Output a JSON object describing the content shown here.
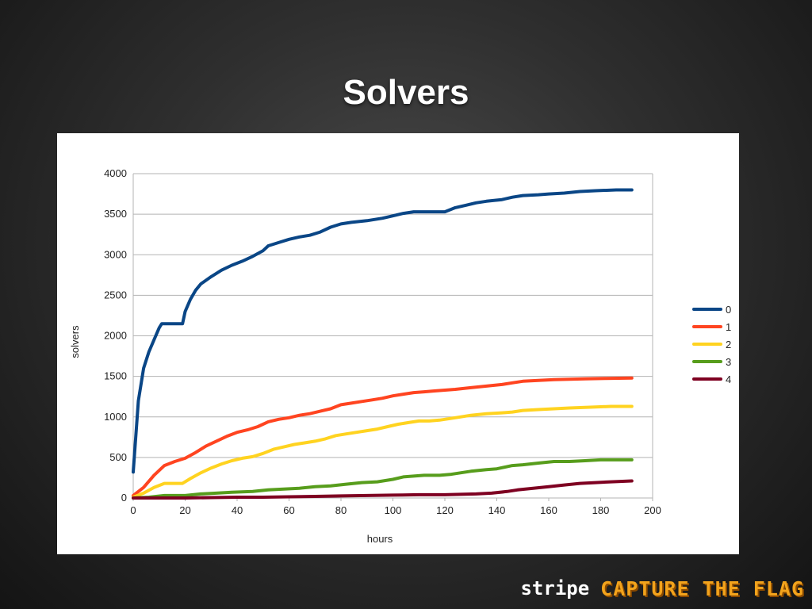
{
  "slide": {
    "title": "Solvers"
  },
  "footer": {
    "brand": "stripe",
    "event": "CAPTURE THE FLAG"
  },
  "chart_data": {
    "type": "line",
    "title": "",
    "xlabel": "hours",
    "ylabel": "solvers",
    "xlim": [
      0,
      200
    ],
    "ylim": [
      0,
      4000
    ],
    "x_ticks": [
      0,
      20,
      40,
      60,
      80,
      100,
      120,
      140,
      160,
      180,
      200
    ],
    "y_ticks": [
      0,
      500,
      1000,
      1500,
      2000,
      2500,
      3000,
      3500,
      4000
    ],
    "grid": "horizontal",
    "legend": "right",
    "series": [
      {
        "name": "0",
        "color": "#0a4686",
        "points": [
          [
            0,
            320
          ],
          [
            2,
            1200
          ],
          [
            4,
            1600
          ],
          [
            6,
            1800
          ],
          [
            8,
            1950
          ],
          [
            10,
            2100
          ],
          [
            11,
            2150
          ],
          [
            14,
            2150
          ],
          [
            16,
            2150
          ],
          [
            19,
            2150
          ],
          [
            20,
            2300
          ],
          [
            22,
            2450
          ],
          [
            24,
            2560
          ],
          [
            26,
            2640
          ],
          [
            30,
            2730
          ],
          [
            34,
            2810
          ],
          [
            38,
            2870
          ],
          [
            42,
            2920
          ],
          [
            46,
            2980
          ],
          [
            50,
            3050
          ],
          [
            52,
            3110
          ],
          [
            56,
            3150
          ],
          [
            60,
            3190
          ],
          [
            64,
            3220
          ],
          [
            68,
            3240
          ],
          [
            72,
            3280
          ],
          [
            76,
            3340
          ],
          [
            80,
            3380
          ],
          [
            84,
            3400
          ],
          [
            90,
            3420
          ],
          [
            96,
            3450
          ],
          [
            100,
            3480
          ],
          [
            104,
            3510
          ],
          [
            108,
            3530
          ],
          [
            112,
            3530
          ],
          [
            116,
            3530
          ],
          [
            118,
            3530
          ],
          [
            120,
            3530
          ],
          [
            124,
            3580
          ],
          [
            128,
            3610
          ],
          [
            132,
            3640
          ],
          [
            136,
            3660
          ],
          [
            142,
            3680
          ],
          [
            146,
            3710
          ],
          [
            150,
            3730
          ],
          [
            156,
            3740
          ],
          [
            160,
            3750
          ],
          [
            166,
            3760
          ],
          [
            172,
            3780
          ],
          [
            178,
            3790
          ],
          [
            186,
            3800
          ],
          [
            192,
            3800
          ]
        ]
      },
      {
        "name": "1",
        "color": "#ff4420",
        "points": [
          [
            0,
            30
          ],
          [
            4,
            130
          ],
          [
            8,
            280
          ],
          [
            12,
            400
          ],
          [
            16,
            450
          ],
          [
            20,
            490
          ],
          [
            24,
            560
          ],
          [
            28,
            640
          ],
          [
            32,
            700
          ],
          [
            36,
            760
          ],
          [
            40,
            810
          ],
          [
            44,
            840
          ],
          [
            48,
            880
          ],
          [
            52,
            940
          ],
          [
            56,
            970
          ],
          [
            60,
            990
          ],
          [
            64,
            1020
          ],
          [
            68,
            1040
          ],
          [
            72,
            1070
          ],
          [
            76,
            1100
          ],
          [
            80,
            1150
          ],
          [
            84,
            1170
          ],
          [
            88,
            1190
          ],
          [
            92,
            1210
          ],
          [
            96,
            1230
          ],
          [
            100,
            1260
          ],
          [
            104,
            1280
          ],
          [
            108,
            1300
          ],
          [
            112,
            1310
          ],
          [
            116,
            1320
          ],
          [
            120,
            1330
          ],
          [
            124,
            1340
          ],
          [
            130,
            1360
          ],
          [
            136,
            1380
          ],
          [
            142,
            1400
          ],
          [
            146,
            1420
          ],
          [
            150,
            1440
          ],
          [
            156,
            1450
          ],
          [
            162,
            1460
          ],
          [
            168,
            1465
          ],
          [
            174,
            1470
          ],
          [
            182,
            1475
          ],
          [
            192,
            1480
          ]
        ]
      },
      {
        "name": "2",
        "color": "#ffd320",
        "points": [
          [
            0,
            10
          ],
          [
            4,
            60
          ],
          [
            8,
            130
          ],
          [
            12,
            180
          ],
          [
            16,
            180
          ],
          [
            19,
            180
          ],
          [
            22,
            240
          ],
          [
            26,
            310
          ],
          [
            30,
            370
          ],
          [
            34,
            420
          ],
          [
            38,
            460
          ],
          [
            42,
            490
          ],
          [
            46,
            510
          ],
          [
            50,
            550
          ],
          [
            54,
            600
          ],
          [
            58,
            630
          ],
          [
            62,
            660
          ],
          [
            66,
            680
          ],
          [
            70,
            700
          ],
          [
            74,
            730
          ],
          [
            78,
            770
          ],
          [
            82,
            790
          ],
          [
            86,
            810
          ],
          [
            90,
            830
          ],
          [
            94,
            850
          ],
          [
            98,
            880
          ],
          [
            102,
            910
          ],
          [
            106,
            930
          ],
          [
            110,
            950
          ],
          [
            114,
            950
          ],
          [
            118,
            960
          ],
          [
            122,
            980
          ],
          [
            126,
            1000
          ],
          [
            130,
            1020
          ],
          [
            136,
            1040
          ],
          [
            142,
            1050
          ],
          [
            146,
            1060
          ],
          [
            150,
            1080
          ],
          [
            156,
            1090
          ],
          [
            162,
            1100
          ],
          [
            168,
            1110
          ],
          [
            176,
            1120
          ],
          [
            184,
            1130
          ],
          [
            192,
            1130
          ]
        ]
      },
      {
        "name": "3",
        "color": "#579d1c",
        "points": [
          [
            0,
            0
          ],
          [
            6,
            10
          ],
          [
            12,
            30
          ],
          [
            20,
            30
          ],
          [
            26,
            50
          ],
          [
            32,
            60
          ],
          [
            38,
            70
          ],
          [
            46,
            80
          ],
          [
            52,
            100
          ],
          [
            58,
            110
          ],
          [
            64,
            120
          ],
          [
            70,
            140
          ],
          [
            76,
            150
          ],
          [
            82,
            170
          ],
          [
            88,
            190
          ],
          [
            94,
            200
          ],
          [
            100,
            230
          ],
          [
            104,
            260
          ],
          [
            108,
            270
          ],
          [
            112,
            280
          ],
          [
            118,
            280
          ],
          [
            122,
            290
          ],
          [
            126,
            310
          ],
          [
            130,
            330
          ],
          [
            136,
            350
          ],
          [
            140,
            360
          ],
          [
            146,
            400
          ],
          [
            150,
            410
          ],
          [
            156,
            430
          ],
          [
            162,
            450
          ],
          [
            168,
            450
          ],
          [
            174,
            460
          ],
          [
            180,
            470
          ],
          [
            186,
            470
          ],
          [
            192,
            470
          ]
        ]
      },
      {
        "name": "4",
        "color": "#7e0021",
        "points": [
          [
            0,
            0
          ],
          [
            20,
            0
          ],
          [
            30,
            5
          ],
          [
            40,
            10
          ],
          [
            50,
            10
          ],
          [
            60,
            15
          ],
          [
            70,
            20
          ],
          [
            80,
            25
          ],
          [
            90,
            30
          ],
          [
            100,
            35
          ],
          [
            110,
            40
          ],
          [
            120,
            40
          ],
          [
            126,
            45
          ],
          [
            132,
            50
          ],
          [
            138,
            60
          ],
          [
            144,
            80
          ],
          [
            148,
            100
          ],
          [
            154,
            120
          ],
          [
            160,
            140
          ],
          [
            166,
            160
          ],
          [
            172,
            180
          ],
          [
            178,
            190
          ],
          [
            184,
            200
          ],
          [
            192,
            210
          ]
        ]
      }
    ]
  }
}
